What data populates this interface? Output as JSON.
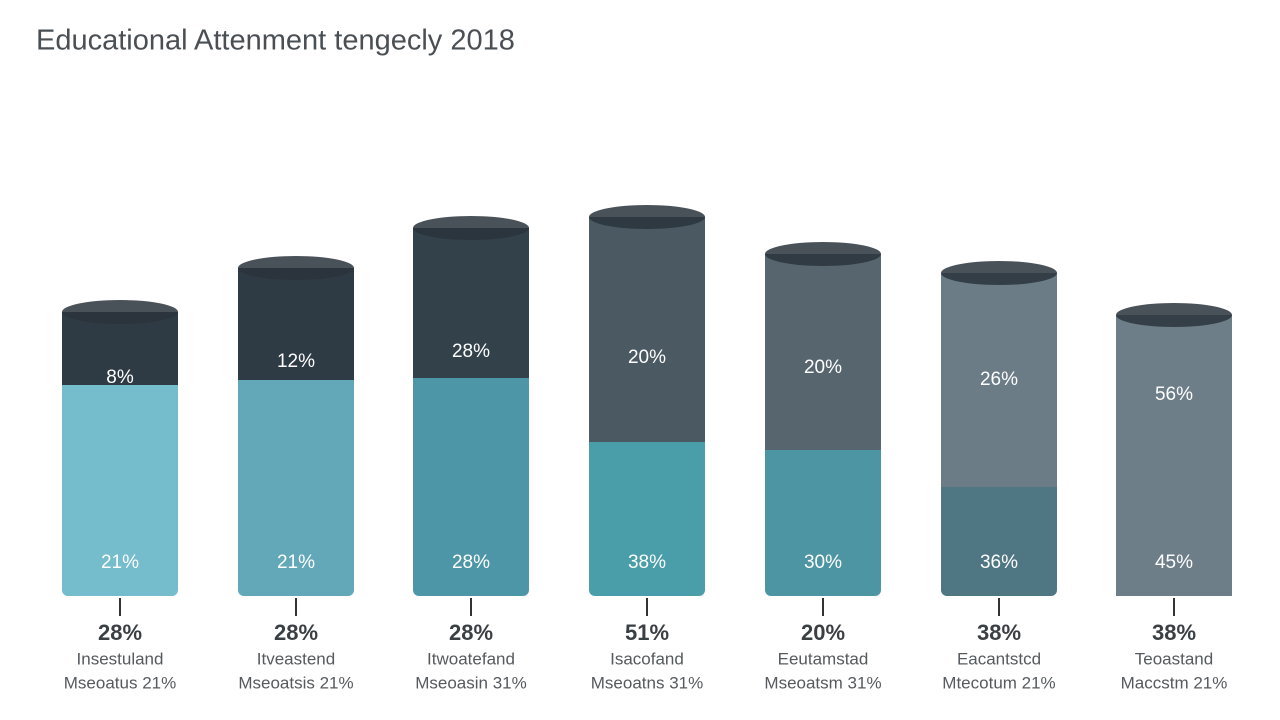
{
  "title": "Educational Attenment tengecly 2018",
  "columns": [
    {
      "top_label": "8%",
      "bottom_label": "21%",
      "value_label": "28%",
      "caption_line1": "Insestuland",
      "caption_line2": "Mseoatus 21%"
    },
    {
      "top_label": "12%",
      "bottom_label": "21%",
      "value_label": "28%",
      "caption_line1": "Itveastend",
      "caption_line2": "Mseoatsis 21%"
    },
    {
      "top_label": "28%",
      "bottom_label": "28%",
      "value_label": "28%",
      "caption_line1": "Itwoatefand",
      "caption_line2": "Mseoasin 31%"
    },
    {
      "top_label": "20%",
      "bottom_label": "38%",
      "value_label": "51%",
      "caption_line1": "Isacofand",
      "caption_line2": "Mseoatns 31%"
    },
    {
      "top_label": "20%",
      "bottom_label": "30%",
      "value_label": "20%",
      "caption_line1": "Eeutamstad",
      "caption_line2": "Mseoatsm 31%"
    },
    {
      "top_label": "26%",
      "bottom_label": "36%",
      "value_label": "38%",
      "caption_line1": "Eacantstcd",
      "caption_line2": "Mtecotum 21%"
    },
    {
      "top_label": "56%",
      "bottom_label": "45%",
      "value_label": "38%",
      "caption_line1": "Teoastand",
      "caption_line2": "Maccstm 21%"
    }
  ]
}
